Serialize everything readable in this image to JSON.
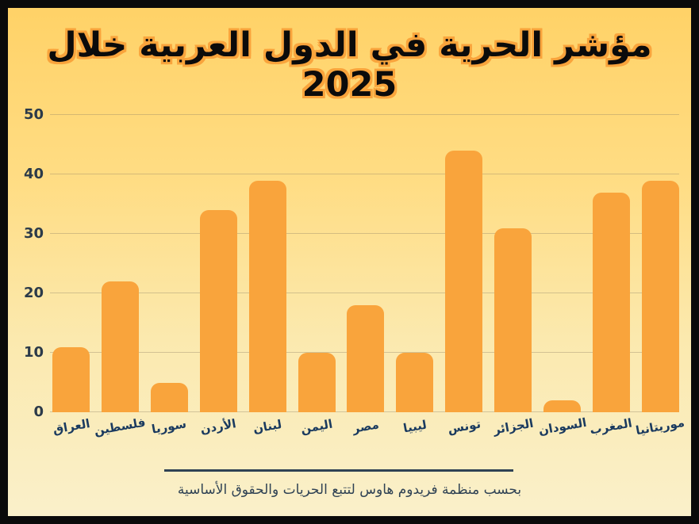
{
  "page": {
    "title": "مؤشر الحرية في الدول العربية خلال 2025",
    "footer_note": "بحسب منظمة فريدوم هاوس لتتبع الحريات والحقوق الأساسية"
  },
  "colors": {
    "bar": "#F9A43C",
    "background_top": "#FFD267",
    "background_bottom": "#FAF0CA",
    "gridline": "rgba(150,136,104,0.40)",
    "y_label": "#2B3A49",
    "x_label": "#1A3A5F",
    "footer_text": "#2F4254",
    "title_text": "#0B0B0B",
    "title_outline": "#F9A43C",
    "frame_border": "#0A0A0A"
  },
  "chart_data": {
    "type": "bar",
    "title": "مؤشر الحرية في الدول العربية خلال 2025",
    "categories": [
      "العراق",
      "فلسطين",
      "سوريا",
      "الأردن",
      "لبنان",
      "اليمن",
      "مصر",
      "ليبيا",
      "تونس",
      "الجزائر",
      "السودان",
      "المغرب",
      "موريتانيا"
    ],
    "values": [
      11,
      22,
      5,
      34,
      39,
      10,
      18,
      10,
      44,
      31,
      2,
      37,
      39
    ],
    "xlabel": "",
    "ylabel": "",
    "ylim": [
      0,
      50
    ],
    "yticks": [
      0,
      10,
      20,
      30,
      40,
      50
    ],
    "grid": true,
    "legend": false,
    "bar_color": "#F9A43C",
    "source_note": "بحسب منظمة فريدوم هاوس لتتبع الحريات والحقوق الأساسية"
  }
}
